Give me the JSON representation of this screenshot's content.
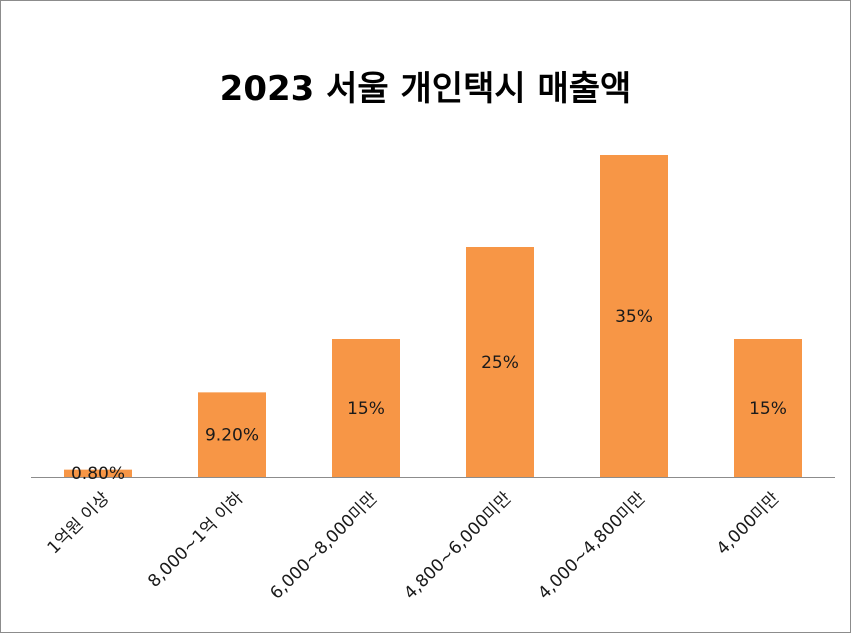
{
  "chart_data": {
    "type": "bar",
    "title": "2023 서울 개인택시 매출액",
    "categories": [
      "1억원 이상",
      "8,000~1억 이하",
      "6,000~8,000미만",
      "4,800~6,000미만",
      "4,000~4,800미만",
      "4,000미만"
    ],
    "values": [
      0.8,
      9.2,
      15,
      25,
      35,
      15
    ],
    "data_labels": [
      "0.80%",
      "9.20%",
      "15%",
      "25%",
      "35%",
      "15%"
    ],
    "xlabel": "",
    "ylabel": "",
    "ylim": [
      0,
      35
    ],
    "grid": false,
    "legend": "none",
    "colors": {
      "bar": "#f79646",
      "axis": "#8c8c8c",
      "text": "#1a1a1a"
    }
  }
}
